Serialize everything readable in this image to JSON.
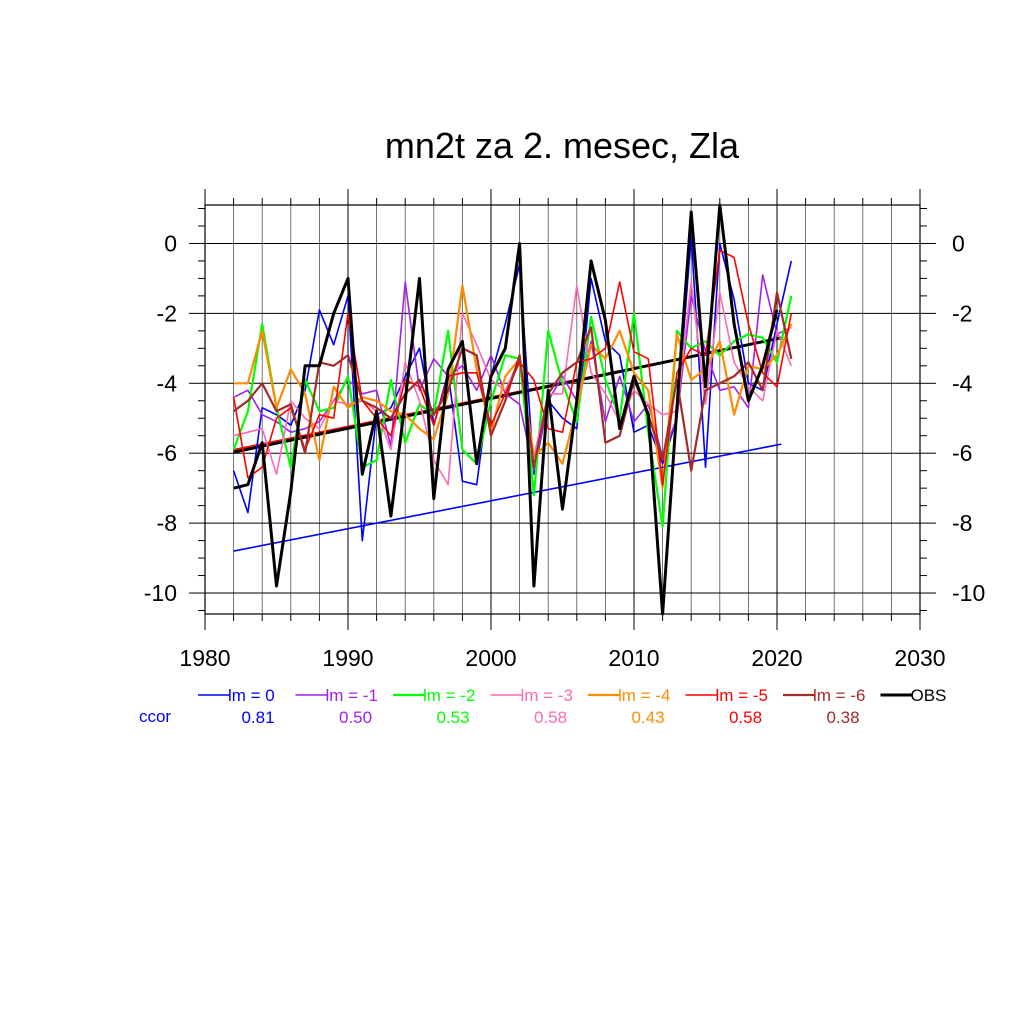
{
  "chart_data": {
    "type": "line",
    "title": "mn2t za 2. mesec, Zla",
    "xlabel": "",
    "ylabel": "",
    "xlim": [
      1980,
      2030
    ],
    "ylim": [
      -10.6,
      1.1
    ],
    "x_ticks": [
      "1980",
      "1990",
      "2000",
      "2010",
      "2020",
      "2030"
    ],
    "y_ticks": [
      "0",
      "-2",
      "-4",
      "-6",
      "-8",
      "-10"
    ],
    "x_tick_values": [
      1980,
      1990,
      2000,
      2010,
      2020,
      2030
    ],
    "y_tick_values": [
      0,
      -2,
      -4,
      -6,
      -8,
      -10
    ],
    "x_minor_step": 2,
    "y_minor_step": 0.5,
    "grid": true,
    "legend_position": "bottom",
    "ccor_label": "ccor",
    "years": [
      1982,
      1983,
      1984,
      1985,
      1986,
      1987,
      1988,
      1989,
      1990,
      1991,
      1992,
      1993,
      1994,
      1995,
      1996,
      1997,
      1998,
      1999,
      2000,
      2001,
      2002,
      2003,
      2004,
      2005,
      2006,
      2007,
      2008,
      2009,
      2010,
      2011,
      2012,
      2013,
      2014,
      2015,
      2016,
      2017,
      2018,
      2019,
      2020,
      2021
    ],
    "series": [
      {
        "name": "lm = 0",
        "color": "#0000ff",
        "width": 1.6,
        "ccor": "0.81",
        "values": [
          -6.5,
          -7.7,
          -4.7,
          -4.9,
          -5.2,
          -4.2,
          -1.9,
          -2.9,
          -1.5,
          -8.5,
          -4.9,
          -4.7,
          -3.8,
          -3.0,
          -5.2,
          -3.7,
          -6.8,
          -6.9,
          -3.8,
          -2.3,
          -0.6,
          -6.6,
          -4.5,
          -5.0,
          -5.3,
          -1.0,
          -2.8,
          -3.2,
          -5.4,
          -5.2,
          -6.3,
          -5.0,
          0.2,
          -6.4,
          0.0,
          -1.6,
          -4.0,
          -4.2,
          -2.3,
          -0.5
        ],
        "trend": [
          -8.8,
          -5.74
        ]
      },
      {
        "name": "lm = -1",
        "color": "#a020f0",
        "width": 1.6,
        "ccor": "0.50",
        "values": [
          -4.4,
          -4.2,
          -4.9,
          -5.1,
          -5.4,
          -5.3,
          -5.1,
          -4.5,
          -3.9,
          -4.3,
          -4.2,
          -5.8,
          -1.1,
          -4.2,
          -3.3,
          -3.8,
          -3.5,
          -4.2,
          -3.2,
          -4.3,
          -4.6,
          -6.5,
          -4.5,
          -3.8,
          -4.5,
          -2.8,
          -5.1,
          -3.8,
          -5.1,
          -4.6,
          -6.1,
          -5.0,
          -1.5,
          -3.1,
          -4.2,
          -4.1,
          -4.7,
          -0.9,
          -2.6,
          -2.4
        ],
        "trend": null
      },
      {
        "name": "lm = -2",
        "color": "#00ff00",
        "width": 2.2,
        "ccor": "0.53",
        "values": [
          -5.9,
          -4.8,
          -2.3,
          -4.7,
          -6.4,
          -3.9,
          -4.8,
          -4.7,
          -3.8,
          -6.4,
          -6.2,
          -3.9,
          -5.7,
          -4.6,
          -4.9,
          -2.5,
          -5.9,
          -6.3,
          -4.5,
          -3.2,
          -3.3,
          -7.2,
          -2.5,
          -4.0,
          -5.1,
          -2.1,
          -3.9,
          -5.0,
          -2.0,
          -5.4,
          -8.1,
          -2.5,
          -3.0,
          -2.8,
          -3.2,
          -2.8,
          -2.6,
          -2.7,
          -3.4,
          -1.5
        ],
        "trend": null
      },
      {
        "name": "lm = -3",
        "color": "#ff69b4",
        "width": 1.6,
        "ccor": "0.58",
        "values": [
          -5.5,
          -5.4,
          -5.3,
          -6.6,
          -4.5,
          -5.0,
          -5.3,
          -4.5,
          -4.6,
          -4.5,
          -4.8,
          -5.9,
          -3.4,
          -4.5,
          -6.2,
          -6.9,
          -2.0,
          -2.9,
          -3.9,
          -4.2,
          -3.3,
          -6.1,
          -4.3,
          -4.3,
          -1.2,
          -3.7,
          -4.3,
          -5.1,
          -4.2,
          -4.6,
          -4.9,
          -4.8,
          -1.1,
          -4.6,
          -1.4,
          -3.4,
          -4.1,
          -4.5,
          -2.5,
          -3.5
        ],
        "trend": null
      },
      {
        "name": "lm = -4",
        "color": "#ff8c00",
        "width": 2.2,
        "ccor": "0.43",
        "values": [
          -4.0,
          -4.0,
          -2.5,
          -4.7,
          -3.6,
          -4.3,
          -6.2,
          -4.1,
          -4.7,
          -4.4,
          -4.5,
          -4.8,
          -4.9,
          -5.3,
          -5.6,
          -4.3,
          -1.2,
          -3.6,
          -5.4,
          -3.8,
          -3.3,
          -6.1,
          -5.7,
          -6.3,
          -4.7,
          -2.9,
          -3.3,
          -2.5,
          -3.7,
          -4.2,
          -7.0,
          -2.6,
          -3.9,
          -3.6,
          -2.8,
          -4.9,
          -3.5,
          -3.6,
          -3.2,
          -2.3
        ],
        "trend": null
      },
      {
        "name": "lm = -5",
        "color": "#ff0000",
        "width": 1.6,
        "ccor": "0.58",
        "values": [
          -4.4,
          -6.7,
          -6.4,
          -5.0,
          -4.7,
          -5.9,
          -4.9,
          -5.0,
          -2.0,
          -4.5,
          -5.0,
          -5.5,
          -3.9,
          -4.1,
          -5.2,
          -3.8,
          -3.7,
          -3.7,
          -5.2,
          -4.3,
          -3.4,
          -3.9,
          -5.3,
          -5.4,
          -3.4,
          -3.3,
          -3.0,
          -1.1,
          -3.1,
          -3.3,
          -6.9,
          -3.7,
          -3.0,
          -3.2,
          -0.2,
          -0.4,
          -2.3,
          -3.7,
          -4.1,
          -2.0
        ],
        "trend": [
          -5.9,
          -2.7
        ]
      },
      {
        "name": "lm = -6",
        "color": "#a52a2a",
        "width": 2.2,
        "ccor": "0.38",
        "values": [
          -4.8,
          -4.5,
          -4.0,
          -4.8,
          -4.6,
          -6.0,
          -3.4,
          -3.5,
          -3.2,
          -4.5,
          -4.7,
          -5.0,
          -4.3,
          -3.9,
          -4.9,
          -4.2,
          -3.0,
          -3.2,
          -5.5,
          -4.5,
          -3.2,
          -6.4,
          -4.3,
          -3.7,
          -3.4,
          -2.4,
          -5.7,
          -5.5,
          -3.9,
          -4.9,
          -6.2,
          -3.9,
          -6.5,
          -4.2,
          -4.0,
          -3.8,
          -3.4,
          -4.2,
          -1.4,
          -3.3
        ],
        "trend": null
      },
      {
        "name": "OBS",
        "color": "#000000",
        "width": 3,
        "ccor": "",
        "values": [
          -7.0,
          -6.9,
          -5.7,
          -9.8,
          -7.1,
          -3.5,
          -3.5,
          -2.0,
          -1.0,
          -6.6,
          -4.8,
          -7.8,
          -4.5,
          -1.0,
          -7.3,
          -3.6,
          -2.8,
          -6.3,
          -3.8,
          -3.0,
          0.0,
          -9.8,
          -4.2,
          -7.6,
          -4.5,
          -0.5,
          -2.2,
          -5.3,
          -3.8,
          -4.9,
          -10.6,
          -4.7,
          0.9,
          -4.1,
          1.1,
          -2.3,
          -4.5,
          -3.5,
          -1.9,
          null
        ],
        "trend": [
          -5.97,
          -2.7
        ]
      }
    ]
  }
}
